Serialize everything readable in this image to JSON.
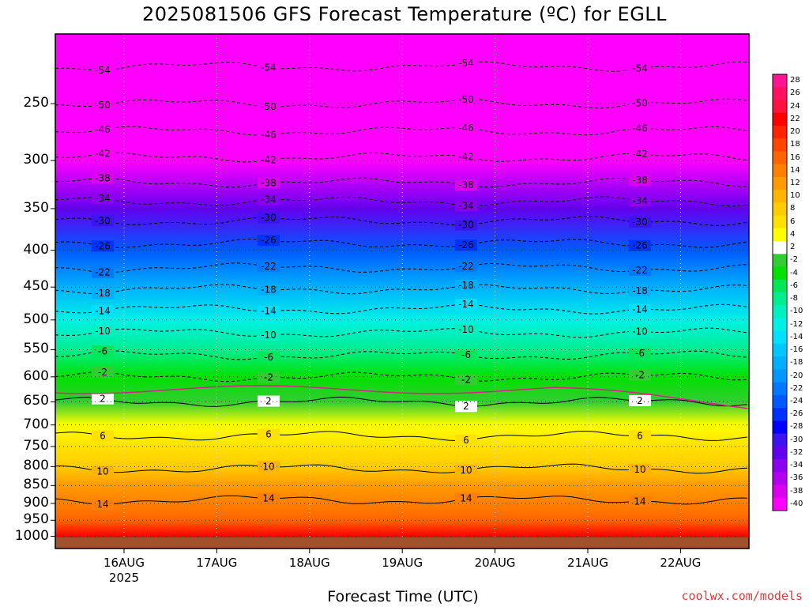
{
  "chart_data": {
    "type": "heatmap",
    "title": "2025081506 GFS Forecast Temperature (ºC) for EGLL",
    "xlabel": "Forecast Time (UTC)",
    "credit": "coolwx.com/models",
    "y_axis": {
      "scale": "log-pressure",
      "ticks": [
        250,
        300,
        350,
        400,
        450,
        500,
        550,
        600,
        650,
        700,
        750,
        800,
        850,
        900,
        950,
        1000
      ],
      "range": [
        1040,
        200
      ]
    },
    "x_axis": {
      "ticks": [
        "16AUG",
        "17AUG",
        "18AUG",
        "19AUG",
        "20AUG",
        "21AUG",
        "22AUG"
      ],
      "year_label": "2025"
    },
    "colorbar": {
      "labels": [
        28,
        26,
        24,
        22,
        20,
        18,
        16,
        14,
        12,
        10,
        8,
        6,
        4,
        2,
        -2,
        -4,
        -6,
        -8,
        -10,
        -12,
        -14,
        -16,
        -18,
        -20,
        -22,
        -24,
        -26,
        -28,
        -30,
        -32,
        -34,
        -36,
        -38,
        -40
      ],
      "colors": [
        "#ff1493",
        "#ff1060",
        "#ff1440",
        "#ff0000",
        "#ff2400",
        "#ff4600",
        "#ff6400",
        "#ff8000",
        "#ff9a00",
        "#ffb400",
        "#ffcc00",
        "#ffe100",
        "#ffff00",
        "#ffffff",
        "#32cd32",
        "#00e100",
        "#00e85a",
        "#00ee90",
        "#00f0c0",
        "#00f0e6",
        "#00e0ff",
        "#00c8ff",
        "#00b0ff",
        "#0096ff",
        "#0078ff",
        "#005aff",
        "#0032ff",
        "#0000ff",
        "#3c14f0",
        "#6400f0",
        "#8c00f0",
        "#b400f0",
        "#dc00f0",
        "#ff00ff"
      ]
    },
    "profile": [
      {
        "p": 1000,
        "t": 22
      },
      {
        "p": 950,
        "t": 17
      },
      {
        "p": 900,
        "t": 15
      },
      {
        "p": 850,
        "t": 12
      },
      {
        "p": 800,
        "t": 9
      },
      {
        "p": 750,
        "t": 7
      },
      {
        "p": 700,
        "t": 4
      },
      {
        "p": 650,
        "t": 1
      },
      {
        "p": 600,
        "t": -3
      },
      {
        "p": 550,
        "t": -7
      },
      {
        "p": 500,
        "t": -11
      },
      {
        "p": 450,
        "t": -17
      },
      {
        "p": 400,
        "t": -24
      },
      {
        "p": 350,
        "t": -31
      },
      {
        "p": 300,
        "t": -42
      },
      {
        "p": 250,
        "t": -50
      },
      {
        "p": 200,
        "t": -56
      }
    ],
    "contours": [
      {
        "label": "-54",
        "p": 222
      },
      {
        "label": "-50",
        "p": 250
      },
      {
        "label": "-46",
        "p": 273
      },
      {
        "label": "-42",
        "p": 297
      },
      {
        "label": "-38",
        "p": 322
      },
      {
        "label": "-34",
        "p": 342
      },
      {
        "label": "-30",
        "p": 364
      },
      {
        "label": "-26",
        "p": 391
      },
      {
        "label": "-22",
        "p": 423
      },
      {
        "label": "-18",
        "p": 453
      },
      {
        "label": "-14",
        "p": 483
      },
      {
        "label": "-10",
        "p": 521
      },
      {
        "label": "-6",
        "p": 560
      },
      {
        "label": "-2",
        "p": 600
      },
      {
        "label": "2",
        "p": 650
      },
      {
        "label": "6",
        "p": 725
      },
      {
        "label": "10",
        "p": 805
      },
      {
        "label": "14",
        "p": 890
      }
    ]
  }
}
